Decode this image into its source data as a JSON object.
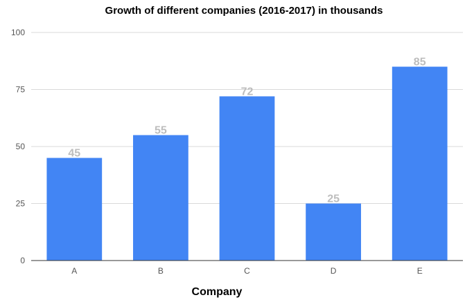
{
  "chart_data": {
    "type": "bar",
    "title": "Growth of different companies (2016-2017) in thousands",
    "xlabel": "Company",
    "ylabel": "",
    "categories": [
      "A",
      "B",
      "C",
      "D",
      "E"
    ],
    "values": [
      45,
      55,
      72,
      25,
      85
    ],
    "data_labels": [
      "45",
      "55",
      "72",
      "25",
      "85"
    ],
    "ylim": [
      0,
      100
    ],
    "yticks": [
      0,
      25,
      50,
      75,
      100
    ],
    "ytick_labels": [
      "0",
      "25",
      "50",
      "75",
      "100"
    ],
    "grid": true,
    "legend": "none",
    "colors": {
      "bar": "#4285f4",
      "data_label": "#bdbdbd"
    }
  }
}
